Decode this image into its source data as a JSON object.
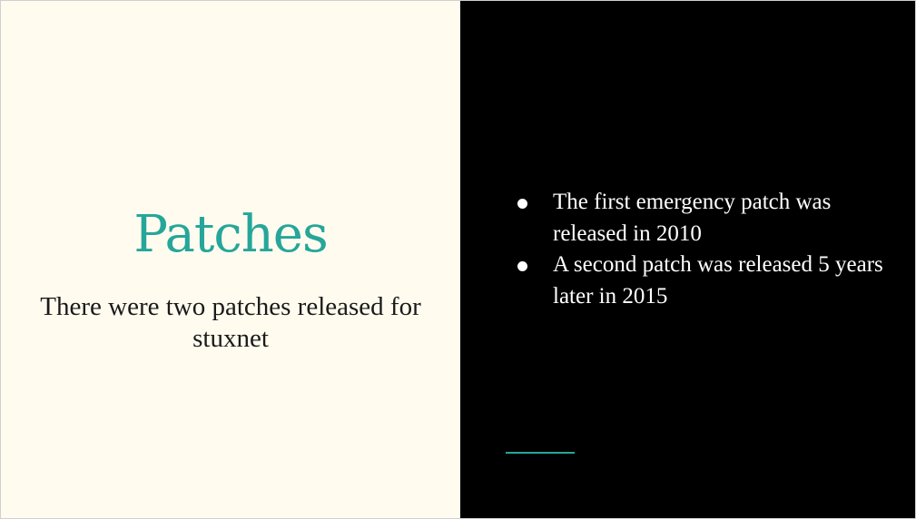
{
  "slide": {
    "title": "Patches",
    "subtitle": "There were two patches released for stuxnet",
    "bullets": [
      "The first emergency patch was released in 2010",
      "A second patch was released 5 years later in 2015"
    ],
    "colors": {
      "left_background": "#fffbef",
      "right_background": "#000000",
      "accent": "#26a69a",
      "title_text": "#26a69a",
      "body_text_left": "#1a1a1a",
      "body_text_right": "#ffffff"
    }
  }
}
